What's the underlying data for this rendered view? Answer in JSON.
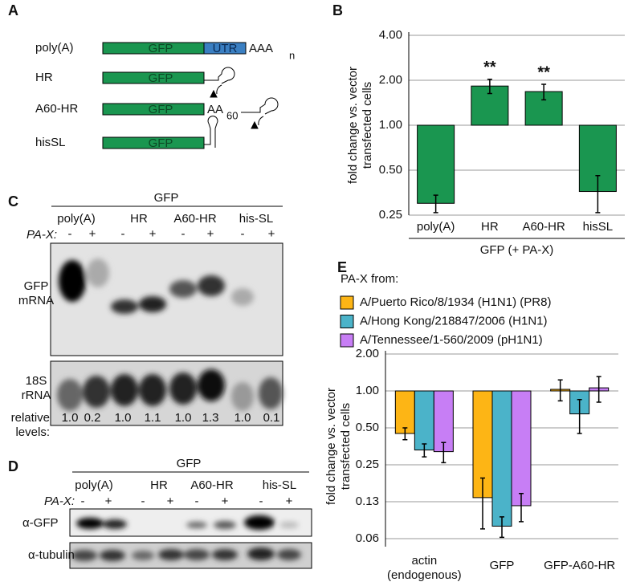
{
  "panel_a": {
    "letter": "A",
    "constructs": [
      "poly(A)",
      "HR",
      "A60-HR",
      "hisSL"
    ],
    "box_label": "GFP",
    "utr": "UTR",
    "tail": "AAA",
    "tail_sub": "n",
    "a60_tail": "AA",
    "a60_sub": "60"
  },
  "panel_c": {
    "letter": "C",
    "group": "GFP",
    "lanes": [
      "poly(A)",
      "HR",
      "A60-HR",
      "his-SL"
    ],
    "pax_label": "PA-X:",
    "pax": [
      "-",
      "+",
      "-",
      "+",
      "-",
      "+",
      "-",
      "+"
    ],
    "rows": [
      "GFP mRNA",
      "18S rRNA"
    ],
    "levels_label": "relative levels:",
    "levels": [
      "1.0",
      "0.2",
      "1.0",
      "1.1",
      "1.0",
      "1.3",
      "1.0",
      "0.1"
    ]
  },
  "panel_d": {
    "letter": "D",
    "group": "GFP",
    "lanes": [
      "poly(A)",
      "HR",
      "A60-HR",
      "his-SL"
    ],
    "pax_label": "PA-X:",
    "pax": [
      "-",
      "+",
      "-",
      "+",
      "-",
      "+",
      "-",
      "+"
    ],
    "rows": [
      "α-GFP",
      "α-tubulin"
    ]
  },
  "chart_data": [
    {
      "panel_letter": "B",
      "type": "bar",
      "categories": [
        "poly(A)",
        "HR",
        "A60-HR",
        "hisSL"
      ],
      "values": [
        0.3,
        1.83,
        1.68,
        0.36
      ],
      "errors": [
        0.04,
        0.2,
        0.2,
        0.1
      ],
      "annotations": [
        null,
        "**",
        "**",
        null
      ],
      "color": "#1a9650",
      "ylabel": [
        "fold change vs. vector",
        "transfected cells"
      ],
      "xlabel": "GFP (+ PA-X)",
      "yscale": "log",
      "ylim": [
        0.25,
        4
      ],
      "yticks": [
        0.25,
        {
          "value": 0.5,
          "label": "0.50"
        },
        {
          "value": 1,
          "label": "1.00"
        },
        {
          "value": 2,
          "label": "2.00"
        },
        {
          "value": 4,
          "label": "4.00"
        }
      ],
      "grid": true
    },
    {
      "panel_letter": "E",
      "type": "bar",
      "legend_title": "PA-X from:",
      "legend": "top-left",
      "categories": [
        "actin (endogenous)",
        "GFP",
        "GFP-A60-HR"
      ],
      "series": [
        {
          "name": "A/Puerto Rico/8/1934 (H1N1) (PR8)",
          "color": "#fdb515",
          "values": [
            0.45,
            0.135,
            1.03
          ],
          "errors": [
            0.05,
            0.06,
            0.2
          ]
        },
        {
          "name": "A/Hong Kong/218847/2006 (H1N1)",
          "color": "#4bb3c9",
          "values": [
            0.33,
            0.079,
            0.65
          ],
          "errors": [
            0.04,
            0.015,
            0.2
          ]
        },
        {
          "name": "A/Tennessee/1-560/2009 (pH1N1)",
          "color": "#c77ef5",
          "values": [
            0.32,
            0.116,
            1.06
          ],
          "errors": [
            0.06,
            0.03,
            0.25
          ]
        }
      ],
      "ylabel": [
        "fold change vs. vector",
        "transfected cells"
      ],
      "yscale": "log",
      "ylim": [
        0.0625,
        2
      ],
      "yticks": [
        {
          "value": 0.0625,
          "label": "0.06"
        },
        {
          "value": 0.125,
          "label": "0.13"
        },
        0.25,
        {
          "value": 0.5,
          "label": "0.50"
        },
        {
          "value": 1,
          "label": "1.00"
        },
        {
          "value": 2,
          "label": "2.00"
        }
      ],
      "grid": true
    }
  ]
}
